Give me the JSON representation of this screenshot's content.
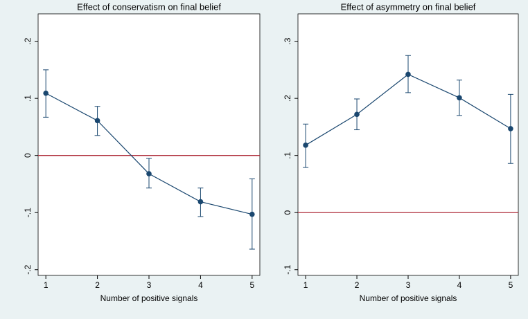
{
  "chart_data": [
    {
      "type": "line",
      "title": "Effect of conservatism on final belief",
      "xlabel": "Number of positive signals",
      "x": [
        1,
        2,
        3,
        4,
        5
      ],
      "xlim": [
        0.85,
        5.15
      ],
      "xticks": [
        1,
        2,
        3,
        4,
        5
      ],
      "ylim": [
        -0.21,
        0.248
      ],
      "yticks": [
        {
          "value": -0.2,
          "label": "-.2"
        },
        {
          "value": -0.1,
          "label": "-.1"
        },
        {
          "value": 0,
          "label": "0"
        },
        {
          "value": 0.1,
          "label": ".1"
        },
        {
          "value": 0.2,
          "label": ".2"
        }
      ],
      "series": [
        {
          "color": "#1a476f",
          "values": [
            0.109,
            0.061,
            -0.032,
            -0.081,
            -0.103
          ],
          "ci_lower": [
            0.067,
            0.035,
            -0.057,
            -0.107,
            -0.164
          ],
          "ci_upper": [
            0.15,
            0.086,
            -0.005,
            -0.057,
            -0.041
          ]
        }
      ],
      "reference_line": 0,
      "reference_color": "#b0303e"
    },
    {
      "type": "line",
      "title": "Effect of asymmetry on final belief",
      "xlabel": "Number of positive signals",
      "x": [
        1,
        2,
        3,
        4,
        5
      ],
      "xlim": [
        0.85,
        5.15
      ],
      "xticks": [
        1,
        2,
        3,
        4,
        5
      ],
      "ylim": [
        -0.11,
        0.348
      ],
      "yticks": [
        {
          "value": -0.1,
          "label": "-.1"
        },
        {
          "value": 0,
          "label": "0"
        },
        {
          "value": 0.1,
          "label": ".1"
        },
        {
          "value": 0.2,
          "label": ".2"
        },
        {
          "value": 0.3,
          "label": ".3"
        }
      ],
      "series": [
        {
          "color": "#1a476f",
          "values": [
            0.118,
            0.172,
            0.242,
            0.201,
            0.147
          ],
          "ci_lower": [
            0.079,
            0.145,
            0.21,
            0.17,
            0.086
          ],
          "ci_upper": [
            0.155,
            0.199,
            0.275,
            0.232,
            0.207
          ]
        }
      ],
      "reference_line": 0,
      "reference_color": "#b0303e"
    }
  ]
}
